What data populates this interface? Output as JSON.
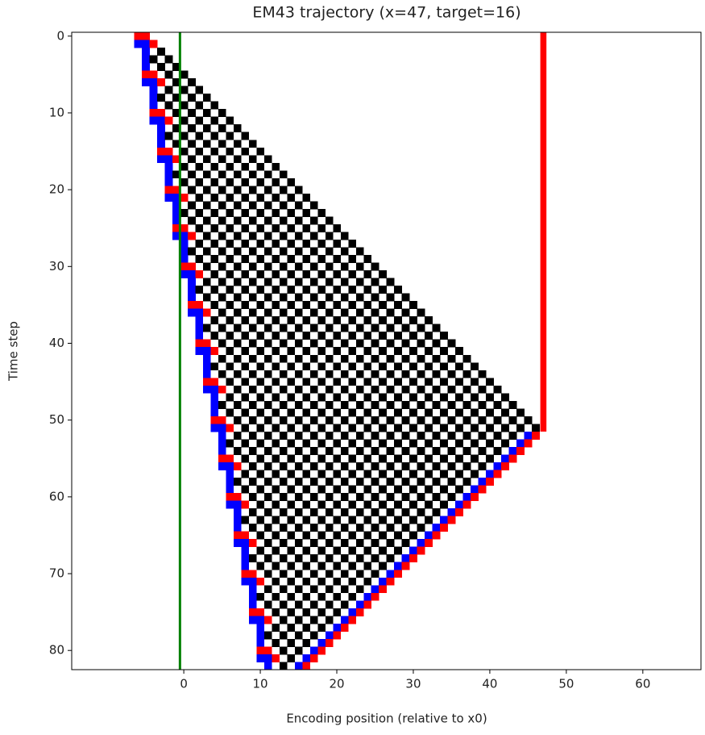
{
  "chart_data": {
    "type": "image",
    "title": "EM43 trajectory (x=47, target=16)",
    "x_label": "Encoding position (relative to x0)",
    "y_label": "Time step",
    "xlim": [
      -14.65,
      67.6
    ],
    "ylim": [
      82.5,
      -0.5
    ],
    "xticks": [
      0,
      10,
      20,
      30,
      40,
      50,
      60
    ],
    "yticks": [
      0,
      10,
      20,
      30,
      40,
      50,
      60,
      70,
      80
    ],
    "palette": {
      "k": "#000000",
      "r": "#ff0000",
      "b": "#0000ff"
    },
    "x0_line": {
      "x": -0.5,
      "color": "#008000"
    },
    "target_column": {
      "x": 47,
      "t_end": 51,
      "color": "#ff0000"
    },
    "rows": [
      {
        "t": 0,
        "x": -6,
        "cells": "rr"
      },
      {
        "t": 1,
        "x": -6,
        "cells": "bbr"
      },
      {
        "t": 2,
        "x": -5,
        "cells": "b.k"
      },
      {
        "t": 3,
        "x": -5,
        "cells": "bk.k"
      },
      {
        "t": 4,
        "x": -5,
        "cells": "b.k.k"
      },
      {
        "t": 5,
        "x": -5,
        "cells": "rr.k.k"
      },
      {
        "t": 6,
        "x": -5,
        "cells": "bbr.k.k"
      },
      {
        "t": 7,
        "x": -4,
        "cells": "b.k.k.k"
      },
      {
        "t": 8,
        "x": -4,
        "cells": "bk.k.k.k"
      },
      {
        "t": 9,
        "x": -4,
        "cells": "b.k.k.k.k"
      },
      {
        "t": 10,
        "x": -4,
        "cells": "rr.k.k.k.k"
      },
      {
        "t": 11,
        "x": -4,
        "cells": "bbr.k.k.k.k"
      },
      {
        "t": 12,
        "x": -3,
        "cells": "b.k.k.k.k.k"
      },
      {
        "t": 13,
        "x": -3,
        "cells": "bk.k.k.k.k.k"
      },
      {
        "t": 14,
        "x": -3,
        "cells": "b.k.k.k.k.k.k"
      },
      {
        "t": 15,
        "x": -3,
        "cells": "rr.k.k.k.k.k.k"
      },
      {
        "t": 16,
        "x": -3,
        "cells": "bbr.k.k.k.k.k.k"
      },
      {
        "t": 17,
        "x": -2,
        "cells": "b.k.k.k.k.k.k.k"
      },
      {
        "t": 18,
        "x": -2,
        "cells": "bk.k.k.k.k.k.k.k"
      },
      {
        "t": 19,
        "x": -2,
        "cells": "b.k.k.k.k.k.k.k.k"
      },
      {
        "t": 20,
        "x": -2,
        "cells": "rr.k.k.k.k.k.k.k.k"
      },
      {
        "t": 21,
        "x": -2,
        "cells": "bbr.k.k.k.k.k.k.k.k"
      },
      {
        "t": 22,
        "x": -1,
        "cells": "b.k.k.k.k.k.k.k.k.k"
      },
      {
        "t": 23,
        "x": -1,
        "cells": "bk.k.k.k.k.k.k.k.k.k"
      },
      {
        "t": 24,
        "x": -1,
        "cells": "b.k.k.k.k.k.k.k.k.k.k"
      },
      {
        "t": 25,
        "x": -1,
        "cells": "rr.k.k.k.k.k.k.k.k.k.k"
      },
      {
        "t": 26,
        "x": -1,
        "cells": "bbr.k.k.k.k.k.k.k.k.k.k"
      },
      {
        "t": 27,
        "x": 0,
        "cells": "b.k.k.k.k.k.k.k.k.k.k.k"
      },
      {
        "t": 28,
        "x": 0,
        "cells": "bk.k.k.k.k.k.k.k.k.k.k.k"
      },
      {
        "t": 29,
        "x": 0,
        "cells": "b.k.k.k.k.k.k.k.k.k.k.k.k"
      },
      {
        "t": 30,
        "x": 0,
        "cells": "rr.k.k.k.k.k.k.k.k.k.k.k.k"
      },
      {
        "t": 31,
        "x": 0,
        "cells": "bbr.k.k.k.k.k.k.k.k.k.k.k.k"
      },
      {
        "t": 32,
        "x": 1,
        "cells": "b.k.k.k.k.k.k.k.k.k.k.k.k.k"
      },
      {
        "t": 33,
        "x": 1,
        "cells": "bk.k.k.k.k.k.k.k.k.k.k.k.k.k"
      },
      {
        "t": 34,
        "x": 1,
        "cells": "b.k.k.k.k.k.k.k.k.k.k.k.k.k.k"
      },
      {
        "t": 35,
        "x": 1,
        "cells": "rr.k.k.k.k.k.k.k.k.k.k.k.k.k.k"
      },
      {
        "t": 36,
        "x": 1,
        "cells": "bbr.k.k.k.k.k.k.k.k.k.k.k.k.k.k"
      },
      {
        "t": 37,
        "x": 2,
        "cells": "b.k.k.k.k.k.k.k.k.k.k.k.k.k.k.k"
      },
      {
        "t": 38,
        "x": 2,
        "cells": "bk.k.k.k.k.k.k.k.k.k.k.k.k.k.k.k"
      },
      {
        "t": 39,
        "x": 2,
        "cells": "b.k.k.k.k.k.k.k.k.k.k.k.k.k.k.k.k"
      },
      {
        "t": 40,
        "x": 2,
        "cells": "rr.k.k.k.k.k.k.k.k.k.k.k.k.k.k.k.k"
      },
      {
        "t": 41,
        "x": 2,
        "cells": "bbr.k.k.k.k.k.k.k.k.k.k.k.k.k.k.k.k"
      },
      {
        "t": 42,
        "x": 3,
        "cells": "b.k.k.k.k.k.k.k.k.k.k.k.k.k.k.k.k.k"
      },
      {
        "t": 43,
        "x": 3,
        "cells": "bk.k.k.k.k.k.k.k.k.k.k.k.k.k.k.k.k.k"
      },
      {
        "t": 44,
        "x": 3,
        "cells": "b.k.k.k.k.k.k.k.k.k.k.k.k.k.k.k.k.k.k"
      },
      {
        "t": 45,
        "x": 3,
        "cells": "rr.k.k.k.k.k.k.k.k.k.k.k.k.k.k.k.k.k.k"
      },
      {
        "t": 46,
        "x": 3,
        "cells": "bbr.k.k.k.k.k.k.k.k.k.k.k.k.k.k.k.k.k.k"
      },
      {
        "t": 47,
        "x": 4,
        "cells": "b.k.k.k.k.k.k.k.k.k.k.k.k.k.k.k.k.k.k.k"
      },
      {
        "t": 48,
        "x": 4,
        "cells": "bk.k.k.k.k.k.k.k.k.k.k.k.k.k.k.k.k.k.k.k"
      },
      {
        "t": 49,
        "x": 4,
        "cells": "b.k.k.k.k.k.k.k.k.k.k.k.k.k.k.k.k.k.k.k.k"
      },
      {
        "t": 50,
        "x": 4,
        "cells": "rr.k.k.k.k.k.k.k.k.k.k.k.k.k.k.k.k.k.k.k.k"
      },
      {
        "t": 51,
        "x": 4,
        "cells": "bbr.k.k.k.k.k.k.k.k.k.k.k.k.k.k.k.k.k.k.k.k"
      },
      {
        "t": 52,
        "x": 5,
        "cells": "b.k.k.k.k.k.k.k.k.k.k.k.k.k.k.k.k.k.k.k.br"
      },
      {
        "t": 53,
        "x": 5,
        "cells": "bk.k.k.k.k.k.k.k.k.k.k.k.k.k.k.k.k.k.k.br"
      },
      {
        "t": 54,
        "x": 5,
        "cells": "b.k.k.k.k.k.k.k.k.k.k.k.k.k.k.k.k.k.k.br"
      },
      {
        "t": 55,
        "x": 5,
        "cells": "rr.k.k.k.k.k.k.k.k.k.k.k.k.k.k.k.k.k.br"
      },
      {
        "t": 56,
        "x": 5,
        "cells": "bbr.k.k.k.k.k.k.k.k.k.k.k.k.k.k.k.k.br"
      },
      {
        "t": 57,
        "x": 6,
        "cells": "b.k.k.k.k.k.k.k.k.k.k.k.k.k.k.k.k.br"
      },
      {
        "t": 58,
        "x": 6,
        "cells": "bk.k.k.k.k.k.k.k.k.k.k.k.k.k.k.k.br"
      },
      {
        "t": 59,
        "x": 6,
        "cells": "b.k.k.k.k.k.k.k.k.k.k.k.k.k.k.k.br"
      },
      {
        "t": 60,
        "x": 6,
        "cells": "rr.k.k.k.k.k.k.k.k.k.k.k.k.k.k.br"
      },
      {
        "t": 61,
        "x": 6,
        "cells": "bbr.k.k.k.k.k.k.k.k.k.k.k.k.k.br"
      },
      {
        "t": 62,
        "x": 7,
        "cells": "b.k.k.k.k.k.k.k.k.k.k.k.k.k.br"
      },
      {
        "t": 63,
        "x": 7,
        "cells": "bk.k.k.k.k.k.k.k.k.k.k.k.k.br"
      },
      {
        "t": 64,
        "x": 7,
        "cells": "b.k.k.k.k.k.k.k.k.k.k.k.k.br"
      },
      {
        "t": 65,
        "x": 7,
        "cells": "rr.k.k.k.k.k.k.k.k.k.k.k.br"
      },
      {
        "t": 66,
        "x": 7,
        "cells": "bbr.k.k.k.k.k.k.k.k.k.k.br"
      },
      {
        "t": 67,
        "x": 8,
        "cells": "b.k.k.k.k.k.k.k.k.k.k.br"
      },
      {
        "t": 68,
        "x": 8,
        "cells": "bk.k.k.k.k.k.k.k.k.k.br"
      },
      {
        "t": 69,
        "x": 8,
        "cells": "b.k.k.k.k.k.k.k.k.k.br"
      },
      {
        "t": 70,
        "x": 8,
        "cells": "rr.k.k.k.k.k.k.k.k.br"
      },
      {
        "t": 71,
        "x": 8,
        "cells": "bbr.k.k.k.k.k.k.k.br"
      },
      {
        "t": 72,
        "x": 9,
        "cells": "b.k.k.k.k.k.k.k.br"
      },
      {
        "t": 73,
        "x": 9,
        "cells": "bk.k.k.k.k.k.k.br"
      },
      {
        "t": 74,
        "x": 9,
        "cells": "b.k.k.k.k.k.k.br"
      },
      {
        "t": 75,
        "x": 9,
        "cells": "rr.k.k.k.k.k.br"
      },
      {
        "t": 76,
        "x": 9,
        "cells": "bbr.k.k.k.k.br"
      },
      {
        "t": 77,
        "x": 10,
        "cells": "b.k.k.k.k.br"
      },
      {
        "t": 78,
        "x": 10,
        "cells": "bk.k.k.k.br"
      },
      {
        "t": 79,
        "x": 10,
        "cells": "b.k.k.k.br"
      },
      {
        "t": 80,
        "x": 10,
        "cells": "rr.k.k.br"
      },
      {
        "t": 81,
        "x": 10,
        "cells": "bbr.k.br"
      },
      {
        "t": 82,
        "x": 11,
        "cells": "b.k.br"
      }
    ]
  }
}
